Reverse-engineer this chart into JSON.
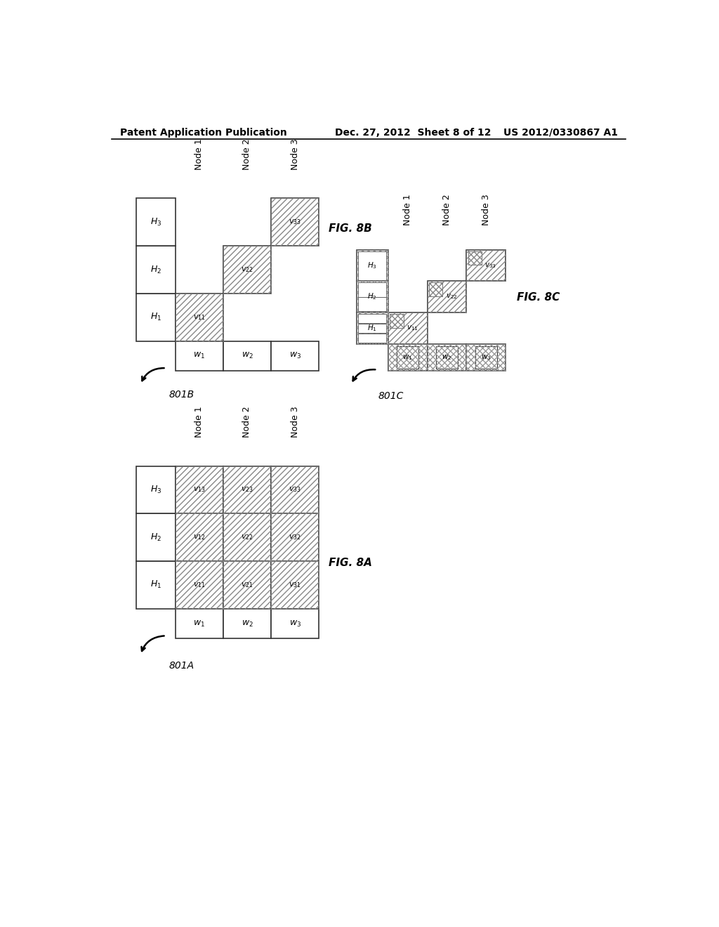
{
  "header_left": "Patent Application Publication",
  "header_mid": "Dec. 27, 2012  Sheet 8 of 12",
  "header_right": "US 2012/0330867 A1",
  "bg_color": "#ffffff",
  "fig8a_label": "FIG. 8A",
  "fig8b_label": "FIG. 8B",
  "fig8c_label": "FIG. 8C",
  "label_801a": "801A",
  "label_801b": "801B",
  "label_801c": "801C",
  "hatch_diag": "////",
  "hatch_cross": "xxxx"
}
